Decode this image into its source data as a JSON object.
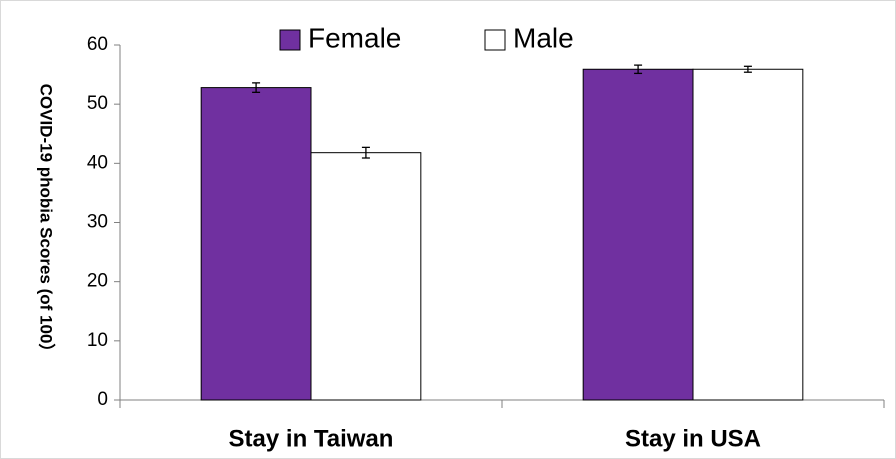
{
  "chart_data": {
    "type": "bar",
    "ylabel": "COVID-19 phobia Scores (of 100）",
    "categories": [
      "Stay in Taiwan",
      "Stay in USA"
    ],
    "series": [
      {
        "name": "Female",
        "color": "#7030a0",
        "values": [
          52.8,
          55.9
        ],
        "errors": [
          0.8,
          0.7
        ]
      },
      {
        "name": "Male",
        "color": "#ffffff",
        "values": [
          41.8,
          55.9
        ],
        "errors": [
          0.9,
          0.5
        ]
      }
    ],
    "ylim": [
      0,
      60
    ],
    "yticks": [
      0,
      10,
      20,
      30,
      40,
      50,
      60
    ],
    "grid": false,
    "legend": "top"
  }
}
